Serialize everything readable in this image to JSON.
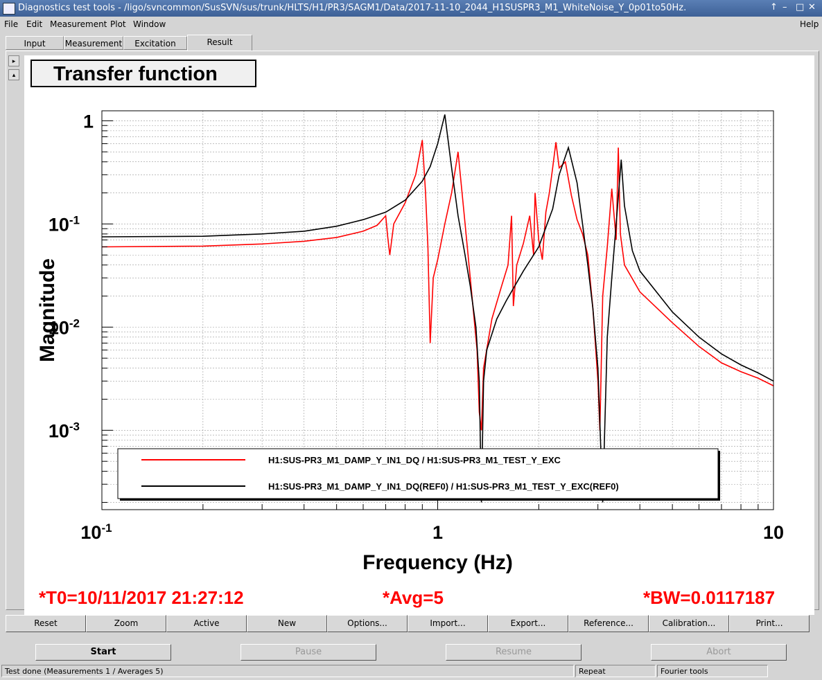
{
  "window": {
    "title": "Diagnostics test tools - /ligo/svncommon/SusSVN/sus/trunk/HLTS/H1/PR3/SAGM1/Data/2017-11-10_2044_H1SUSPR3_M1_WhiteNoise_Y_0p01to50Hz.",
    "controls": [
      "↑",
      "–",
      "□",
      "✕"
    ]
  },
  "menu": {
    "file": "File",
    "edit": "Edit",
    "measurement": "Measurement",
    "plot": "Plot",
    "window": "Window",
    "help": "Help"
  },
  "tabs": [
    "Input",
    "Measurement",
    "Excitation",
    "Result"
  ],
  "active_tab": "Result",
  "plot": {
    "title": "Transfer function",
    "stats": {
      "t0": "*T0=10/11/2017 21:27:12",
      "avg": "*Avg=5",
      "bw": "*BW=0.0117187"
    }
  },
  "chart_data": {
    "type": "line",
    "xlabel": "Frequency (Hz)",
    "ylabel": "Magnitude",
    "xscale": "log",
    "yscale": "log",
    "xlim": [
      0.1,
      10
    ],
    "ylim": [
      0.00017,
      1.25
    ],
    "x_ticks": [
      "10",
      "1",
      "10"
    ],
    "x_tick_exps": [
      "-1",
      "",
      ""
    ],
    "y_ticks": [
      "1",
      "10",
      "10",
      "10"
    ],
    "y_tick_exps": [
      "",
      "-1",
      "-2",
      "-3"
    ],
    "grid": true,
    "legend_placement": "bottom",
    "series": [
      {
        "name": "H1:SUS-PR3_M1_DAMP_Y_IN1_DQ / H1:SUS-PR3_M1_TEST_Y_EXC",
        "color": "#ff0000",
        "points": [
          [
            0.1,
            0.06
          ],
          [
            0.2,
            0.061
          ],
          [
            0.3,
            0.064
          ],
          [
            0.4,
            0.068
          ],
          [
            0.5,
            0.074
          ],
          [
            0.6,
            0.085
          ],
          [
            0.66,
            0.097
          ],
          [
            0.7,
            0.12
          ],
          [
            0.71,
            0.075
          ],
          [
            0.72,
            0.05
          ],
          [
            0.74,
            0.1
          ],
          [
            0.8,
            0.16
          ],
          [
            0.86,
            0.3
          ],
          [
            0.9,
            0.65
          ],
          [
            0.92,
            0.2
          ],
          [
            0.935,
            0.06
          ],
          [
            0.95,
            0.007
          ],
          [
            0.97,
            0.03
          ],
          [
            1.0,
            0.045
          ],
          [
            1.05,
            0.1
          ],
          [
            1.1,
            0.2
          ],
          [
            1.15,
            0.5
          ],
          [
            1.2,
            0.12
          ],
          [
            1.25,
            0.03
          ],
          [
            1.31,
            0.006
          ],
          [
            1.33,
            0.0015
          ],
          [
            1.35,
            0.001
          ],
          [
            1.37,
            0.004
          ],
          [
            1.45,
            0.012
          ],
          [
            1.55,
            0.025
          ],
          [
            1.62,
            0.04
          ],
          [
            1.66,
            0.12
          ],
          [
            1.68,
            0.016
          ],
          [
            1.72,
            0.04
          ],
          [
            1.8,
            0.065
          ],
          [
            1.88,
            0.12
          ],
          [
            1.93,
            0.05
          ],
          [
            1.95,
            0.2
          ],
          [
            2.0,
            0.07
          ],
          [
            2.05,
            0.045
          ],
          [
            2.1,
            0.13
          ],
          [
            2.15,
            0.2
          ],
          [
            2.2,
            0.35
          ],
          [
            2.25,
            0.62
          ],
          [
            2.3,
            0.35
          ],
          [
            2.4,
            0.4
          ],
          [
            2.5,
            0.19
          ],
          [
            2.6,
            0.11
          ],
          [
            2.7,
            0.08
          ],
          [
            2.8,
            0.05
          ],
          [
            2.9,
            0.015
          ],
          [
            3.0,
            0.003
          ],
          [
            3.04,
            0.001
          ],
          [
            3.1,
            0.02
          ],
          [
            3.2,
            0.06
          ],
          [
            3.3,
            0.22
          ],
          [
            3.4,
            0.07
          ],
          [
            3.45,
            0.55
          ],
          [
            3.5,
            0.08
          ],
          [
            3.6,
            0.04
          ],
          [
            4,
            0.022
          ],
          [
            5,
            0.011
          ],
          [
            6,
            0.0065
          ],
          [
            7,
            0.0045
          ],
          [
            8,
            0.0037
          ],
          [
            9,
            0.0032
          ],
          [
            10,
            0.0027
          ]
        ]
      },
      {
        "name": "H1:SUS-PR3_M1_DAMP_Y_IN1_DQ(REF0) / H1:SUS-PR3_M1_TEST_Y_EXC(REF0)",
        "color": "#000000",
        "points": [
          [
            0.1,
            0.075
          ],
          [
            0.2,
            0.076
          ],
          [
            0.3,
            0.08
          ],
          [
            0.4,
            0.085
          ],
          [
            0.5,
            0.095
          ],
          [
            0.6,
            0.11
          ],
          [
            0.7,
            0.13
          ],
          [
            0.8,
            0.17
          ],
          [
            0.9,
            0.26
          ],
          [
            0.95,
            0.36
          ],
          [
            1.0,
            0.6
          ],
          [
            1.05,
            1.15
          ],
          [
            1.1,
            0.35
          ],
          [
            1.15,
            0.12
          ],
          [
            1.2,
            0.055
          ],
          [
            1.25,
            0.025
          ],
          [
            1.3,
            0.01
          ],
          [
            1.33,
            0.003
          ],
          [
            1.35,
            0.0002
          ],
          [
            1.37,
            0.003
          ],
          [
            1.4,
            0.006
          ],
          [
            1.5,
            0.012
          ],
          [
            1.6,
            0.018
          ],
          [
            1.8,
            0.035
          ],
          [
            2.0,
            0.06
          ],
          [
            2.2,
            0.14
          ],
          [
            2.3,
            0.3
          ],
          [
            2.45,
            0.55
          ],
          [
            2.6,
            0.25
          ],
          [
            2.7,
            0.1
          ],
          [
            2.8,
            0.04
          ],
          [
            2.9,
            0.015
          ],
          [
            3.0,
            0.004
          ],
          [
            3.1,
            0.0002
          ],
          [
            3.2,
            0.008
          ],
          [
            3.3,
            0.03
          ],
          [
            3.4,
            0.1
          ],
          [
            3.52,
            0.42
          ],
          [
            3.6,
            0.15
          ],
          [
            3.8,
            0.055
          ],
          [
            4,
            0.035
          ],
          [
            5,
            0.014
          ],
          [
            6,
            0.008
          ],
          [
            7,
            0.0055
          ],
          [
            8,
            0.0043
          ],
          [
            9,
            0.0036
          ],
          [
            10,
            0.003
          ]
        ]
      }
    ]
  },
  "buttons": [
    "Reset",
    "Zoom",
    "Active",
    "New",
    "Options...",
    "Import...",
    "Export...",
    "Reference...",
    "Calibration...",
    "Print..."
  ],
  "controls": {
    "start": "Start",
    "pause": "Pause",
    "resume": "Resume",
    "abort": "Abort"
  },
  "status": {
    "message": "Test done (Measurements 1 / Averages 5)",
    "mode": "Repeat",
    "tools": "Fourier tools"
  }
}
